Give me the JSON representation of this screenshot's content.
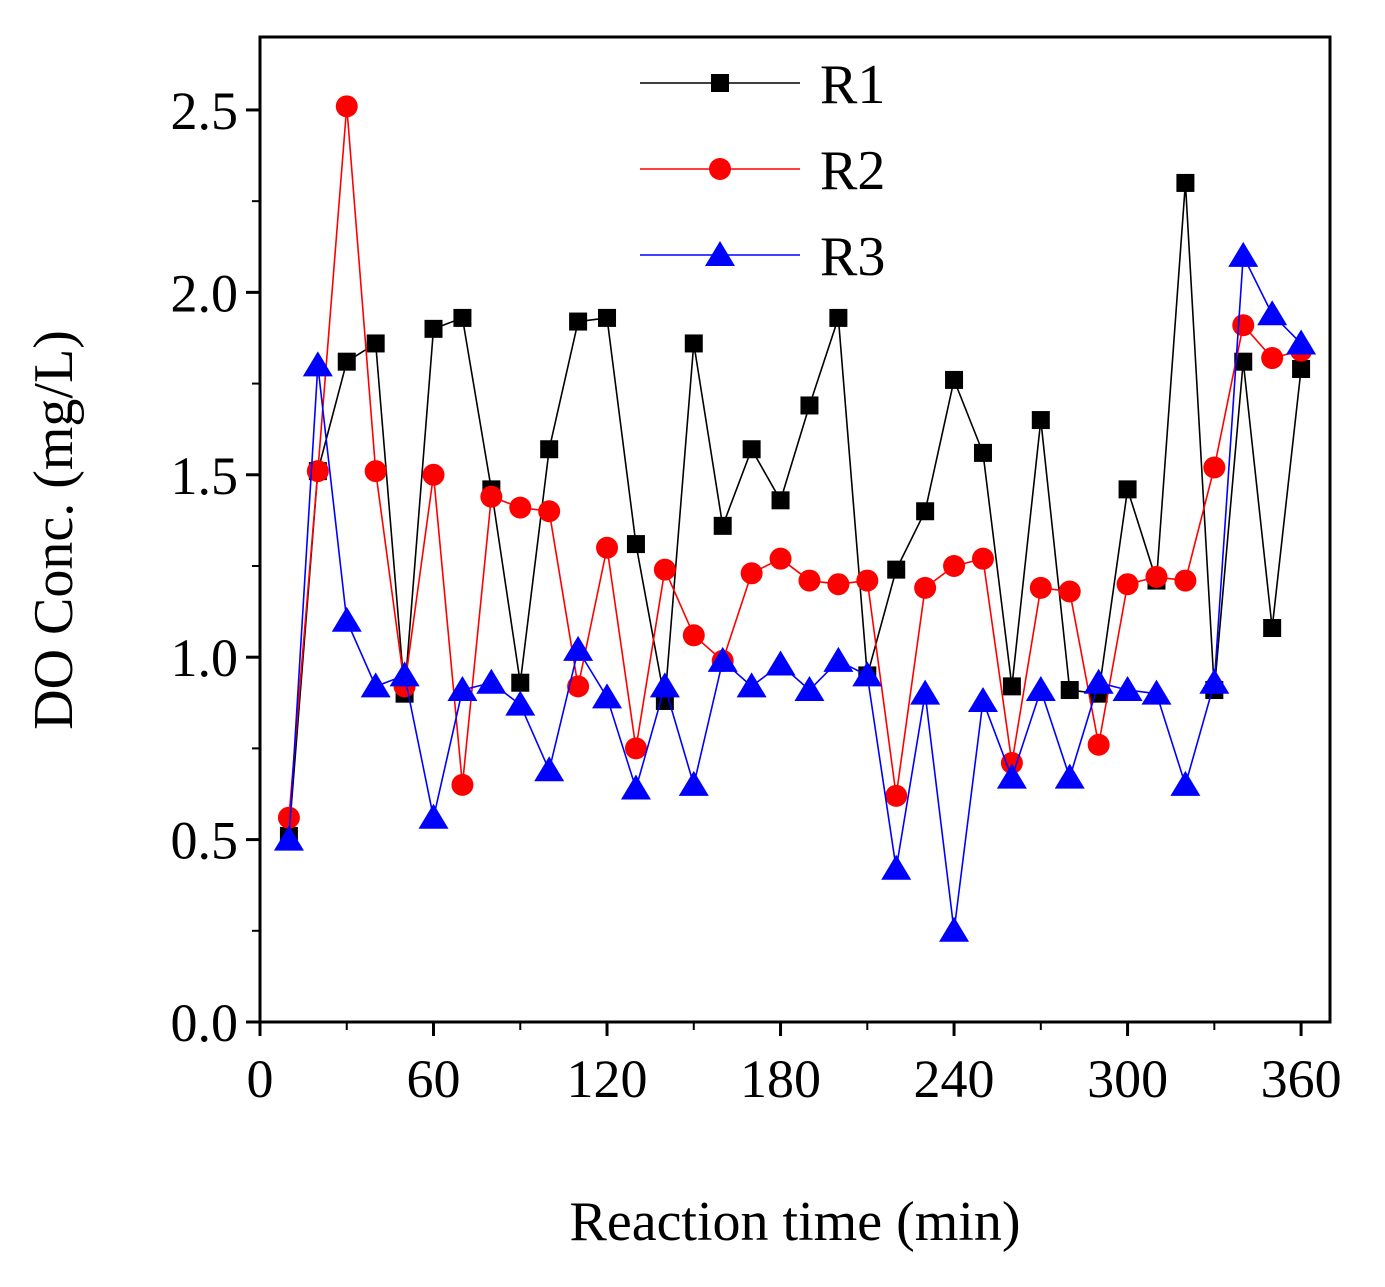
{
  "chart_data": {
    "type": "line",
    "title": "",
    "xlabel": "Reaction time (min)",
    "ylabel": "DO Conc. (mg/L)",
    "xlim": [
      0,
      370
    ],
    "ylim": [
      0,
      2.7
    ],
    "xticks": [
      0,
      60,
      120,
      180,
      240,
      300,
      360
    ],
    "xtick_labels": [
      "0",
      "60",
      "120",
      "180",
      "240",
      "300",
      "360"
    ],
    "yticks": [
      0.0,
      0.5,
      1.0,
      1.5,
      2.0,
      2.5
    ],
    "ytick_labels": [
      "0.0",
      "0.5",
      "1.0",
      "1.5",
      "2.0",
      "2.5"
    ],
    "grid": false,
    "legend_position": "top-center",
    "x": [
      10,
      20,
      30,
      40,
      50,
      60,
      70,
      80,
      90,
      100,
      110,
      120,
      130,
      140,
      150,
      160,
      170,
      180,
      190,
      200,
      210,
      220,
      230,
      240,
      250,
      260,
      270,
      280,
      290,
      300,
      310,
      320,
      330,
      340,
      350,
      360
    ],
    "series": [
      {
        "name": "R1",
        "color": "#000000",
        "marker": "square",
        "values": [
          0.51,
          1.51,
          1.81,
          1.86,
          0.9,
          1.9,
          1.93,
          1.46,
          0.93,
          1.57,
          1.92,
          1.93,
          1.31,
          0.88,
          1.86,
          1.36,
          1.57,
          1.43,
          1.69,
          1.93,
          0.95,
          1.24,
          1.4,
          1.76,
          1.56,
          0.92,
          1.65,
          0.91,
          0.9,
          1.46,
          1.21,
          2.3,
          0.91,
          1.81,
          1.08,
          1.79
        ]
      },
      {
        "name": "R2",
        "color": "#ff0000",
        "marker": "circle",
        "values": [
          0.56,
          1.51,
          2.51,
          1.51,
          0.92,
          1.5,
          0.65,
          1.44,
          1.41,
          1.4,
          0.92,
          1.3,
          0.75,
          1.24,
          1.06,
          0.99,
          1.23,
          1.27,
          1.21,
          1.2,
          1.21,
          0.62,
          1.19,
          1.25,
          1.27,
          0.71,
          1.19,
          1.18,
          0.76,
          1.2,
          1.22,
          1.21,
          1.52,
          1.91,
          1.82,
          1.84
        ]
      },
      {
        "name": "R3",
        "color": "#0000ff",
        "marker": "triangle",
        "values": [
          0.5,
          1.8,
          1.1,
          0.92,
          0.95,
          0.56,
          0.91,
          0.93,
          0.87,
          0.69,
          1.02,
          0.89,
          0.64,
          0.92,
          0.65,
          0.99,
          0.92,
          0.98,
          0.91,
          0.99,
          0.95,
          0.42,
          0.9,
          0.25,
          0.88,
          0.67,
          0.91,
          0.67,
          0.93,
          0.91,
          0.9,
          0.65,
          0.93,
          2.1,
          1.94,
          1.86
        ]
      }
    ]
  }
}
